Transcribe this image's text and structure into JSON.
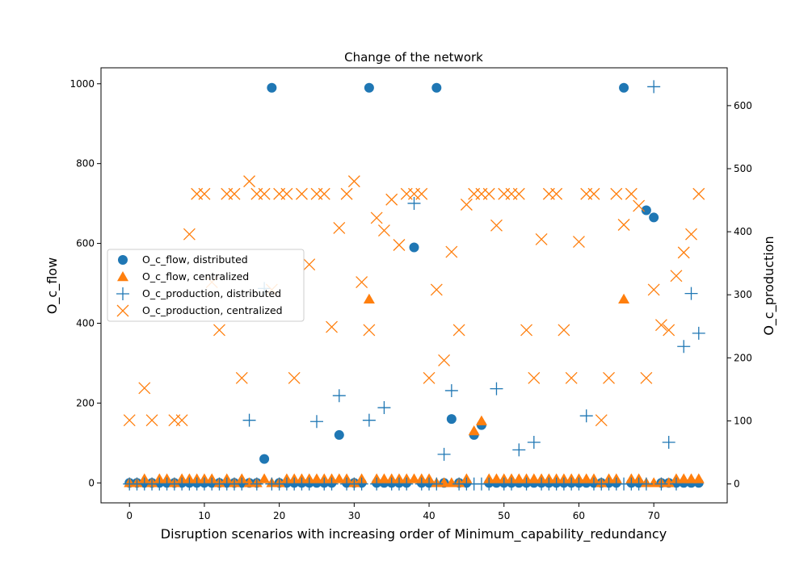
{
  "chart_data": {
    "type": "scatter",
    "title": "Change of the network",
    "xlabel": "Disruption scenarios with increasing order of Minimum_capability_redundancy",
    "ylabel": "O_c_flow",
    "ylabel_right": "O_c_production",
    "xlim": [
      -3.8,
      79.8
    ],
    "ylim_left": [
      -50,
      1040
    ],
    "ylim_right": [
      -30,
      660
    ],
    "x_ticks": [
      0,
      10,
      20,
      30,
      40,
      50,
      60,
      70
    ],
    "y_ticks_left": [
      0,
      200,
      400,
      600,
      800,
      1000
    ],
    "y_ticks_right": [
      0,
      100,
      200,
      300,
      400,
      500,
      600
    ],
    "legend_position": "center-left",
    "series": [
      {
        "name": "O_c_flow, distributed",
        "axis": "left",
        "marker": "circle",
        "color": "#1f77b4",
        "x": [
          0,
          1,
          2,
          3,
          4,
          5,
          6,
          7,
          8,
          9,
          10,
          11,
          12,
          13,
          14,
          15,
          16,
          17,
          18,
          19,
          20,
          21,
          22,
          23,
          24,
          25,
          26,
          27,
          28,
          29,
          30,
          31,
          32,
          33,
          34,
          35,
          36,
          37,
          38,
          39,
          40,
          41,
          42,
          43,
          44,
          45,
          46,
          47,
          48,
          49,
          50,
          51,
          52,
          53,
          54,
          55,
          56,
          57,
          58,
          59,
          60,
          61,
          62,
          63,
          64,
          65,
          66,
          67,
          68,
          69,
          70,
          71,
          72,
          73,
          74,
          75,
          76
        ],
        "y": [
          0,
          0,
          0,
          0,
          0,
          0,
          0,
          0,
          0,
          0,
          0,
          0,
          0,
          0,
          0,
          0,
          0,
          0,
          60,
          990,
          0,
          0,
          0,
          0,
          0,
          0,
          0,
          0,
          120,
          0,
          0,
          0,
          990,
          0,
          0,
          0,
          0,
          0,
          590,
          0,
          0,
          990,
          0,
          160,
          0,
          0,
          120,
          145,
          0,
          0,
          0,
          0,
          0,
          0,
          0,
          0,
          0,
          0,
          0,
          0,
          0,
          0,
          0,
          0,
          0,
          0,
          990,
          0,
          0,
          683,
          665,
          0,
          0,
          0,
          0,
          0,
          0
        ]
      },
      {
        "name": "O_c_flow, centralized",
        "axis": "left",
        "marker": "triangle",
        "color": "#ff7f0e",
        "x": [
          0,
          1,
          2,
          3,
          4,
          5,
          6,
          7,
          8,
          9,
          10,
          11,
          12,
          13,
          14,
          15,
          16,
          17,
          18,
          19,
          20,
          21,
          22,
          23,
          24,
          25,
          26,
          27,
          28,
          29,
          30,
          31,
          32,
          33,
          34,
          35,
          36,
          37,
          38,
          39,
          40,
          41,
          42,
          43,
          44,
          45,
          46,
          47,
          48,
          49,
          50,
          51,
          52,
          53,
          54,
          55,
          56,
          57,
          58,
          59,
          60,
          61,
          62,
          63,
          64,
          65,
          66,
          67,
          68,
          69,
          70,
          71,
          72,
          73,
          74,
          75,
          76
        ],
        "y": [
          0,
          0,
          10,
          0,
          10,
          10,
          0,
          10,
          10,
          10,
          10,
          10,
          0,
          10,
          0,
          10,
          0,
          0,
          10,
          0,
          0,
          10,
          10,
          10,
          10,
          10,
          10,
          10,
          10,
          10,
          0,
          10,
          460,
          10,
          10,
          10,
          10,
          10,
          10,
          10,
          10,
          0,
          0,
          0,
          0,
          10,
          130,
          155,
          10,
          10,
          10,
          10,
          10,
          10,
          10,
          10,
          10,
          10,
          10,
          10,
          10,
          10,
          10,
          0,
          10,
          10,
          460,
          10,
          10,
          0,
          0,
          0,
          0,
          10,
          10,
          10,
          10
        ]
      },
      {
        "name": "O_c_production, distributed",
        "axis": "right",
        "marker": "plus",
        "color": "#1f77b4",
        "x": [
          0,
          1,
          2,
          3,
          4,
          5,
          6,
          7,
          8,
          9,
          10,
          11,
          12,
          13,
          14,
          15,
          16,
          17,
          18,
          19,
          20,
          21,
          22,
          23,
          24,
          25,
          26,
          27,
          28,
          29,
          30,
          31,
          32,
          33,
          34,
          35,
          36,
          37,
          38,
          39,
          40,
          41,
          42,
          43,
          44,
          45,
          46,
          47,
          48,
          49,
          50,
          51,
          52,
          53,
          54,
          55,
          56,
          57,
          58,
          59,
          60,
          61,
          62,
          63,
          64,
          65,
          66,
          67,
          68,
          69,
          70,
          71,
          72,
          73,
          74,
          75,
          76
        ],
        "y": [
          0,
          0,
          0,
          0,
          0,
          0,
          0,
          0,
          0,
          0,
          0,
          0,
          0,
          0,
          0,
          0,
          101,
          0,
          310,
          0,
          0,
          0,
          0,
          0,
          0,
          99,
          0,
          0,
          140,
          0,
          0,
          0,
          101,
          0,
          121,
          0,
          0,
          0,
          445,
          0,
          0,
          0,
          47,
          148,
          0,
          0,
          0,
          0,
          0,
          151,
          0,
          0,
          54,
          0,
          66,
          0,
          0,
          0,
          0,
          0,
          0,
          108,
          0,
          0,
          0,
          0,
          0,
          0,
          0,
          0,
          630,
          0,
          66,
          0,
          218,
          302,
          239
        ]
      },
      {
        "name": "O_c_production, centralized",
        "axis": "right",
        "marker": "x",
        "color": "#ff7f0e",
        "x": [
          0,
          2,
          3,
          6,
          7,
          8,
          9,
          10,
          11,
          12,
          13,
          14,
          15,
          16,
          17,
          18,
          19,
          20,
          21,
          22,
          23,
          24,
          25,
          26,
          27,
          28,
          29,
          30,
          31,
          32,
          33,
          34,
          35,
          36,
          37,
          38,
          39,
          40,
          41,
          42,
          43,
          44,
          45,
          46,
          47,
          48,
          49,
          50,
          51,
          52,
          53,
          54,
          55,
          56,
          57,
          58,
          59,
          60,
          61,
          62,
          63,
          64,
          65,
          66,
          67,
          68,
          69,
          70,
          71,
          72,
          73,
          74,
          75,
          76
        ],
        "y": [
          101,
          152,
          101,
          101,
          101,
          396,
          460,
          460,
          320,
          244,
          460,
          460,
          168,
          480,
          460,
          460,
          308,
          460,
          460,
          168,
          460,
          348,
          460,
          460,
          249,
          406,
          460,
          480,
          320,
          244,
          422,
          402,
          451,
          379,
          460,
          460,
          460,
          168,
          308,
          196,
          368,
          244,
          443,
          460,
          460,
          460,
          410,
          460,
          460,
          460,
          244,
          168,
          388,
          460,
          460,
          244,
          168,
          384,
          460,
          460,
          101,
          168,
          460,
          411,
          460,
          441,
          168,
          308,
          252,
          244,
          330,
          367,
          396,
          460
        ]
      }
    ]
  }
}
